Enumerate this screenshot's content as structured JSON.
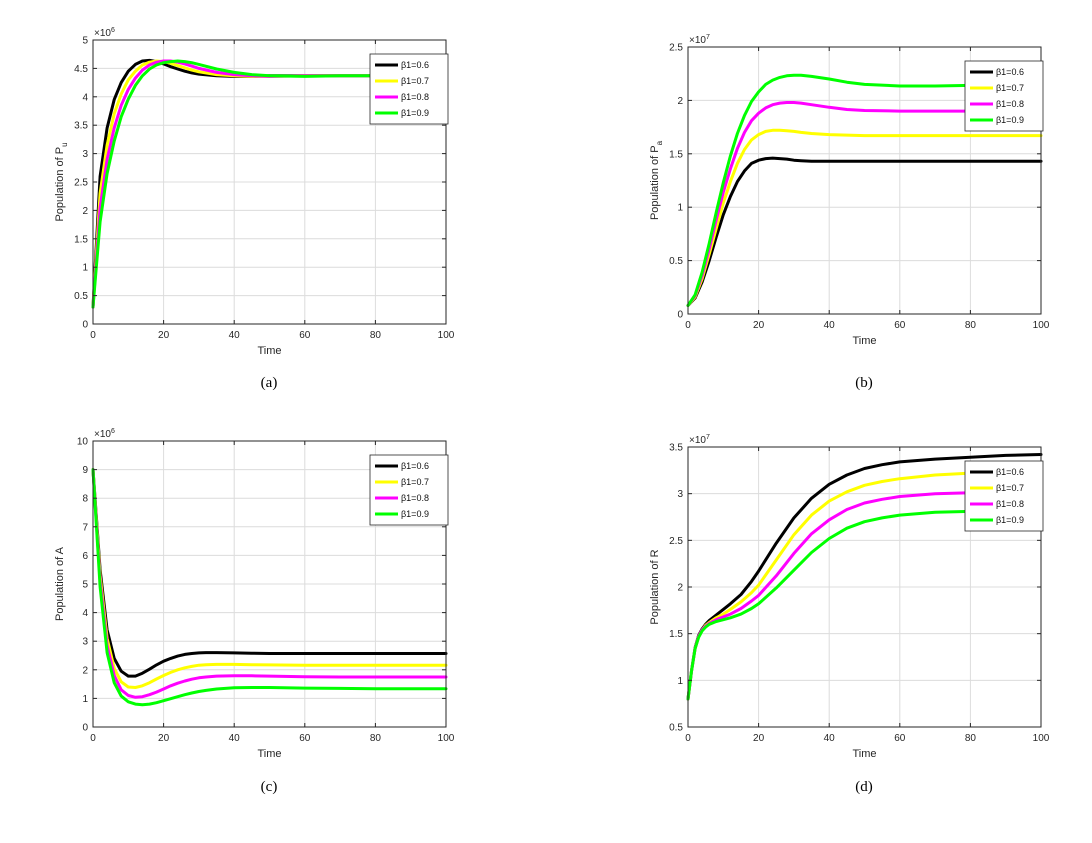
{
  "chart_data": [
    {
      "type": "line",
      "caption": "(a)",
      "xlabel": "Time",
      "ylabel_main": "Population of P",
      "ylabel_sub": "u",
      "multiplier_base": "×10",
      "multiplier_exp": "6",
      "xlim": [
        0,
        100
      ],
      "ylim": [
        0,
        5
      ],
      "xticks": [
        0,
        20,
        40,
        60,
        80,
        100
      ],
      "yticks": [
        0,
        0.5,
        1,
        1.5,
        2,
        2.5,
        3,
        3.5,
        4,
        4.5,
        5
      ],
      "grid": true,
      "legend": "top-right",
      "x": [
        0,
        2,
        4,
        6,
        8,
        10,
        12,
        14,
        16,
        18,
        20,
        22,
        24,
        26,
        28,
        30,
        35,
        40,
        45,
        50,
        60,
        70,
        80,
        90,
        100
      ],
      "series": [
        {
          "name": "β1=0.6",
          "color": "#000000",
          "values": [
            0.3,
            2.6,
            3.45,
            3.95,
            4.25,
            4.45,
            4.57,
            4.63,
            4.64,
            4.62,
            4.58,
            4.53,
            4.49,
            4.45,
            4.42,
            4.4,
            4.37,
            4.36,
            4.36,
            4.37,
            4.37,
            4.37,
            4.37,
            4.37,
            4.37
          ]
        },
        {
          "name": "β1=0.7",
          "color": "#ffff00",
          "values": [
            0.3,
            2.3,
            3.15,
            3.7,
            4.05,
            4.3,
            4.45,
            4.56,
            4.61,
            4.63,
            4.62,
            4.59,
            4.55,
            4.51,
            4.47,
            4.44,
            4.39,
            4.37,
            4.36,
            4.36,
            4.37,
            4.37,
            4.37,
            4.37,
            4.37
          ]
        },
        {
          "name": "β1=0.8",
          "color": "#ff00ff",
          "values": [
            0.3,
            2.05,
            2.9,
            3.45,
            3.85,
            4.13,
            4.33,
            4.47,
            4.56,
            4.61,
            4.63,
            4.63,
            4.61,
            4.58,
            4.54,
            4.5,
            4.43,
            4.39,
            4.37,
            4.36,
            4.37,
            4.37,
            4.37,
            4.37,
            4.37
          ]
        },
        {
          "name": "β1=0.9",
          "color": "#00ff00",
          "values": [
            0.3,
            1.8,
            2.65,
            3.22,
            3.65,
            3.96,
            4.2,
            4.37,
            4.49,
            4.56,
            4.6,
            4.62,
            4.63,
            4.62,
            4.6,
            4.57,
            4.49,
            4.43,
            4.39,
            4.37,
            4.36,
            4.37,
            4.37,
            4.37,
            4.37
          ]
        }
      ]
    },
    {
      "type": "line",
      "caption": "(b)",
      "xlabel": "Time",
      "ylabel_main": "Population of P",
      "ylabel_sub": "a",
      "multiplier_base": "×10",
      "multiplier_exp": "7",
      "xlim": [
        0,
        100
      ],
      "ylim": [
        0,
        2.5
      ],
      "xticks": [
        0,
        20,
        40,
        60,
        80,
        100
      ],
      "yticks": [
        0,
        0.5,
        1,
        1.5,
        2,
        2.5
      ],
      "grid": true,
      "legend": "top-right",
      "x": [
        0,
        2,
        4,
        6,
        8,
        10,
        12,
        14,
        16,
        18,
        20,
        22,
        24,
        26,
        28,
        30,
        32,
        35,
        40,
        45,
        50,
        60,
        70,
        80,
        90,
        100
      ],
      "series": [
        {
          "name": "β1=0.6",
          "color": "#000000",
          "values": [
            0.08,
            0.15,
            0.3,
            0.5,
            0.72,
            0.93,
            1.1,
            1.24,
            1.34,
            1.41,
            1.44,
            1.455,
            1.46,
            1.455,
            1.45,
            1.44,
            1.435,
            1.43,
            1.43,
            1.43,
            1.43,
            1.43,
            1.43,
            1.43,
            1.43,
            1.43
          ]
        },
        {
          "name": "β1=0.7",
          "color": "#ffff00",
          "values": [
            0.08,
            0.16,
            0.33,
            0.56,
            0.8,
            1.04,
            1.24,
            1.41,
            1.54,
            1.63,
            1.68,
            1.71,
            1.72,
            1.72,
            1.715,
            1.71,
            1.7,
            1.69,
            1.68,
            1.675,
            1.67,
            1.67,
            1.67,
            1.67,
            1.67,
            1.67
          ]
        },
        {
          "name": "β1=0.8",
          "color": "#ff00ff",
          "values": [
            0.08,
            0.17,
            0.36,
            0.61,
            0.88,
            1.14,
            1.36,
            1.55,
            1.7,
            1.81,
            1.88,
            1.93,
            1.96,
            1.975,
            1.98,
            1.98,
            1.975,
            1.96,
            1.935,
            1.915,
            1.905,
            1.9,
            1.9,
            1.9,
            1.9,
            1.9
          ]
        },
        {
          "name": "β1=0.9",
          "color": "#00ff00",
          "values": [
            0.08,
            0.18,
            0.39,
            0.66,
            0.95,
            1.23,
            1.48,
            1.69,
            1.86,
            1.99,
            2.08,
            2.15,
            2.19,
            2.215,
            2.23,
            2.235,
            2.235,
            2.225,
            2.2,
            2.17,
            2.15,
            2.135,
            2.135,
            2.14,
            2.14,
            2.14
          ]
        }
      ]
    },
    {
      "type": "line",
      "caption": "(c)",
      "xlabel": "Time",
      "ylabel_main": "Population of A",
      "ylabel_sub": "",
      "multiplier_base": "×10",
      "multiplier_exp": "6",
      "xlim": [
        0,
        100
      ],
      "ylim": [
        0,
        10
      ],
      "xticks": [
        0,
        20,
        40,
        60,
        80,
        100
      ],
      "yticks": [
        0,
        1,
        2,
        3,
        4,
        5,
        6,
        7,
        8,
        9,
        10
      ],
      "grid": true,
      "legend": "top-right",
      "x": [
        0,
        2,
        4,
        6,
        8,
        10,
        12,
        14,
        16,
        18,
        20,
        22,
        24,
        26,
        28,
        30,
        32,
        35,
        40,
        45,
        50,
        60,
        70,
        80,
        90,
        100
      ],
      "series": [
        {
          "name": "β1=0.6",
          "color": "#000000",
          "values": [
            9,
            5.5,
            3.4,
            2.4,
            1.95,
            1.78,
            1.78,
            1.88,
            2.02,
            2.17,
            2.3,
            2.4,
            2.48,
            2.54,
            2.57,
            2.59,
            2.6,
            2.6,
            2.59,
            2.58,
            2.57,
            2.57,
            2.57,
            2.57,
            2.57,
            2.57
          ]
        },
        {
          "name": "β1=0.7",
          "color": "#ffff00",
          "values": [
            9,
            5.3,
            3.1,
            2.05,
            1.58,
            1.4,
            1.38,
            1.44,
            1.55,
            1.68,
            1.8,
            1.91,
            2.0,
            2.07,
            2.12,
            2.16,
            2.18,
            2.19,
            2.19,
            2.18,
            2.17,
            2.16,
            2.16,
            2.16,
            2.16,
            2.16
          ]
        },
        {
          "name": "β1=0.8",
          "color": "#ff00ff",
          "values": [
            9,
            5.1,
            2.85,
            1.8,
            1.3,
            1.1,
            1.04,
            1.06,
            1.13,
            1.22,
            1.33,
            1.44,
            1.53,
            1.61,
            1.67,
            1.72,
            1.75,
            1.78,
            1.79,
            1.79,
            1.78,
            1.76,
            1.75,
            1.75,
            1.75,
            1.75
          ]
        },
        {
          "name": "β1=0.9",
          "color": "#00ff00",
          "values": [
            9,
            4.9,
            2.6,
            1.55,
            1.08,
            0.88,
            0.8,
            0.78,
            0.8,
            0.85,
            0.92,
            0.99,
            1.06,
            1.13,
            1.19,
            1.24,
            1.28,
            1.33,
            1.37,
            1.38,
            1.38,
            1.36,
            1.35,
            1.34,
            1.34,
            1.34
          ]
        }
      ]
    },
    {
      "type": "line",
      "caption": "(d)",
      "xlabel": "Time",
      "ylabel_main": "Population of R",
      "ylabel_sub": "",
      "multiplier_base": "×10",
      "multiplier_exp": "7",
      "xlim": [
        0,
        100
      ],
      "ylim": [
        0.5,
        3.5
      ],
      "xticks": [
        0,
        20,
        40,
        60,
        80,
        100
      ],
      "yticks": [
        0.5,
        1,
        1.5,
        2,
        2.5,
        3,
        3.5
      ],
      "grid": true,
      "legend": "top-right",
      "x": [
        0,
        1,
        2,
        3,
        4,
        5,
        6,
        8,
        10,
        12,
        15,
        18,
        20,
        25,
        30,
        35,
        40,
        45,
        50,
        55,
        60,
        70,
        80,
        90,
        100
      ],
      "series": [
        {
          "name": "β1=0.6",
          "color": "#000000",
          "values": [
            0.8,
            1.1,
            1.35,
            1.48,
            1.55,
            1.6,
            1.64,
            1.7,
            1.76,
            1.82,
            1.92,
            2.06,
            2.17,
            2.47,
            2.74,
            2.95,
            3.1,
            3.2,
            3.27,
            3.31,
            3.34,
            3.37,
            3.39,
            3.41,
            3.42
          ]
        },
        {
          "name": "β1=0.7",
          "color": "#ffff00",
          "values": [
            0.8,
            1.1,
            1.34,
            1.47,
            1.54,
            1.59,
            1.62,
            1.67,
            1.71,
            1.76,
            1.84,
            1.94,
            2.02,
            2.29,
            2.56,
            2.77,
            2.92,
            3.02,
            3.09,
            3.13,
            3.16,
            3.2,
            3.22,
            3.23,
            3.24
          ]
        },
        {
          "name": "β1=0.8",
          "color": "#ff00ff",
          "values": [
            0.8,
            1.1,
            1.34,
            1.47,
            1.54,
            1.58,
            1.61,
            1.65,
            1.68,
            1.71,
            1.77,
            1.85,
            1.91,
            2.12,
            2.36,
            2.57,
            2.72,
            2.83,
            2.9,
            2.94,
            2.97,
            3.0,
            3.01,
            3.02,
            3.02
          ]
        },
        {
          "name": "β1=0.9",
          "color": "#00ff00",
          "values": [
            0.8,
            1.1,
            1.34,
            1.46,
            1.53,
            1.57,
            1.6,
            1.63,
            1.65,
            1.67,
            1.71,
            1.77,
            1.82,
            1.99,
            2.18,
            2.37,
            2.52,
            2.63,
            2.7,
            2.74,
            2.77,
            2.8,
            2.81,
            2.82,
            2.82
          ]
        }
      ]
    }
  ]
}
